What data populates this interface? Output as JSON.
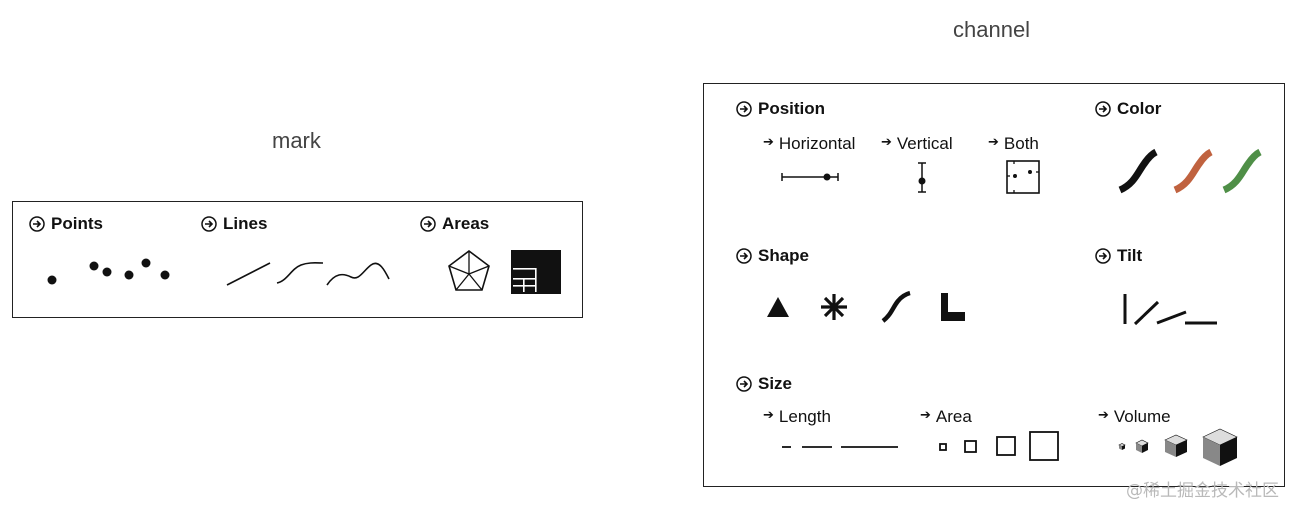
{
  "mark": {
    "caption": "mark",
    "points_label": "Points",
    "lines_label": "Lines",
    "areas_label": "Areas"
  },
  "channel": {
    "caption": "channel",
    "position_label": "Position",
    "horizontal_label": "Horizontal",
    "vertical_label": "Vertical",
    "both_label": "Both",
    "color_label": "Color",
    "shape_label": "Shape",
    "tilt_label": "Tilt",
    "size_label": "Size",
    "length_label": "Length",
    "area_label": "Area",
    "volume_label": "Volume",
    "colors": {
      "black": "#111111",
      "rust": "#c0623f",
      "green": "#4f8f47"
    }
  },
  "icons": {
    "heading_marker": "circled-arrow-icon",
    "sub_marker": "small-arrow-icon"
  },
  "watermark": "@稀土掘金技术社区"
}
